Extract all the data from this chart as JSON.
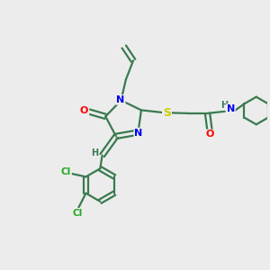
{
  "bg_color": "#ececec",
  "bond_color": "#3a7a50",
  "atom_colors": {
    "N": "#0000ee",
    "O": "#ff0000",
    "S": "#cccc00",
    "Cl": "#22aa22",
    "H": "#3a7a50",
    "C": "#3a7a50"
  },
  "figsize": [
    3.0,
    3.0
  ],
  "dpi": 100
}
